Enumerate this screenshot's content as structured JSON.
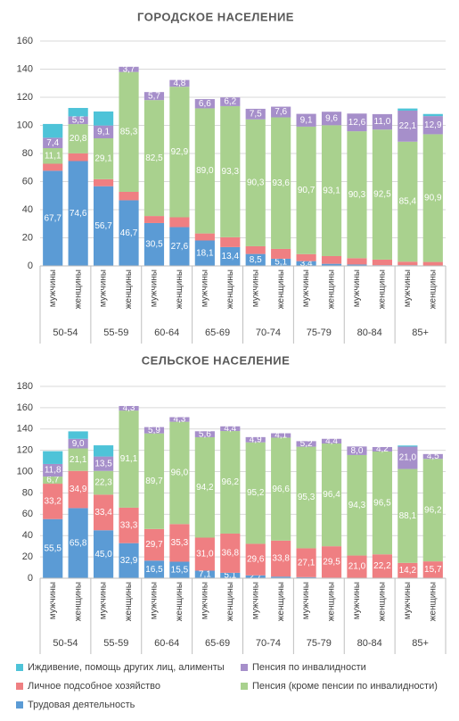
{
  "chart_data": [
    {
      "type": "stacked-bar",
      "title": "ГОРОДСКОЕ НАСЕЛЕНИЕ",
      "categories": [
        "мужчины",
        "женщины",
        "мужчины",
        "женщины",
        "мужчины",
        "женщины",
        "мужчины",
        "женщины",
        "мужчины",
        "женщины",
        "мужчины",
        "женщины",
        "мужчины",
        "женщины",
        "мужчины",
        "женщины"
      ],
      "groups": [
        "50-54",
        "55-59",
        "60-64",
        "65-69",
        "70-74",
        "75-79",
        "80-84",
        "85+"
      ],
      "ylim": [
        0,
        160
      ],
      "yticks": [
        0,
        20,
        40,
        60,
        80,
        100,
        120,
        140,
        160
      ],
      "grid": true,
      "series": [
        {
          "name": "Трудовая деятельность",
          "color": "#5b9bd5",
          "values": [
            67.7,
            74.6,
            56.7,
            46.7,
            30.5,
            27.6,
            18.1,
            13.4,
            8.5,
            5.1,
            3.4,
            1.5,
            1.0,
            0.5,
            0.5,
            0.3
          ],
          "value_labels": [
            "67,7",
            "74,6",
            "56,7",
            "46,7",
            "30,5",
            "27,6",
            "18,1",
            "13,4",
            "8,5",
            "5,1",
            "3,4",
            null,
            null,
            null,
            null,
            null
          ]
        },
        {
          "name": "Личное подсобное хозяйство",
          "color": "#ef7f82",
          "values": [
            5.0,
            5.5,
            5.0,
            6.0,
            5.0,
            7.0,
            5.0,
            7.0,
            5.5,
            7.0,
            5.0,
            5.5,
            4.5,
            4.0,
            2.5,
            2.5
          ],
          "value_labels": [
            null,
            null,
            null,
            null,
            null,
            null,
            null,
            null,
            null,
            null,
            null,
            null,
            null,
            null,
            null,
            null
          ]
        },
        {
          "name": "Пенсия (кроме пенсии по инвалидности)",
          "color": "#a9d18e",
          "values": [
            11.1,
            20.8,
            29.1,
            85.3,
            82.5,
            92.9,
            89.0,
            93.3,
            90.3,
            93.6,
            90.7,
            93.1,
            90.3,
            92.5,
            85.4,
            90.9
          ],
          "value_labels": [
            "11,1",
            "20,8",
            "29,1",
            "85,3",
            "82,5",
            "92,9",
            "89,0",
            "93,3",
            "90,3",
            "93,6",
            "90,7",
            "93,1",
            "90,3",
            "92,5",
            "85,4",
            "90,9"
          ]
        },
        {
          "name": "Пенсия по инвалидности",
          "color": "#a68fca",
          "values": [
            7.4,
            5.5,
            9.1,
            3.7,
            5.7,
            4.8,
            6.6,
            6.2,
            7.5,
            7.6,
            9.1,
            9.6,
            12.6,
            11.0,
            22.1,
            12.9
          ],
          "value_labels": [
            "7,4",
            "5,5",
            "9,1",
            "3,7",
            "5,7",
            "4,8",
            "6,6",
            "6,2",
            "7,5",
            "7,6",
            "9,1",
            "9,6",
            "12,6",
            "11,0",
            "22,1",
            "12,9"
          ]
        },
        {
          "name": "Иждивение, помощь других лиц, алименты",
          "color": "#4ec3d8",
          "values": [
            9.8,
            6.0,
            10.0,
            0,
            0,
            0,
            0,
            0,
            0,
            0,
            0,
            0,
            0,
            0,
            1.5,
            1.5
          ]
        }
      ]
    },
    {
      "type": "stacked-bar",
      "title": "СЕЛЬСКОЕ НАСЕЛЕНИЕ",
      "categories": [
        "мужчины",
        "женщины",
        "мужчины",
        "женщины",
        "мужчины",
        "женщины",
        "мужчины",
        "женщины",
        "мужчины",
        "женщины",
        "мужчины",
        "женщины",
        "мужчины",
        "женщины",
        "мужчины",
        "женщины"
      ],
      "groups": [
        "50-54",
        "55-59",
        "60-64",
        "65-69",
        "70-74",
        "75-79",
        "80-84",
        "85+"
      ],
      "ylim": [
        0,
        180
      ],
      "yticks": [
        0,
        20,
        40,
        60,
        80,
        100,
        120,
        140,
        160,
        180
      ],
      "grid": true,
      "series": [
        {
          "color": "#5b9bd5",
          "values": [
            55.5,
            65.8,
            45.0,
            32.9,
            16.5,
            15.5,
            7.1,
            5.1,
            2.7,
            1.5,
            1.0,
            0.5,
            0.3,
            0.2,
            0.2,
            0.1
          ],
          "value_labels": [
            "55,5",
            "65,8",
            "45,0",
            "32,9",
            "16,5",
            "15,5",
            "7,1",
            "5,1",
            "2,7",
            null,
            null,
            null,
            null,
            null,
            null,
            null
          ]
        },
        {
          "color": "#ef7f82",
          "values": [
            33.2,
            34.9,
            33.4,
            33.3,
            29.7,
            35.3,
            31.0,
            36.8,
            29.6,
            33.8,
            27.1,
            29.5,
            21.0,
            22.2,
            14.2,
            15.7
          ],
          "value_labels": [
            "33,2",
            "34,9",
            "33,4",
            "33,3",
            "29,7",
            "35,3",
            "31,0",
            "36,8",
            "29,6",
            "33,8",
            "27,1",
            "29,5",
            "21,0",
            "22,2",
            "14,2",
            "15,7"
          ]
        },
        {
          "color": "#a9d18e",
          "values": [
            6.7,
            21.1,
            22.3,
            91.1,
            89.7,
            96.0,
            94.2,
            96.2,
            95.2,
            96.6,
            95.3,
            96.4,
            94.3,
            96.5,
            88.1,
            96.2
          ],
          "value_labels": [
            "6,7",
            "21,1",
            "22,3",
            "91,1",
            "89,7",
            "96,0",
            "94,2",
            "96,2",
            "95,2",
            "96,6",
            "95,3",
            "96,4",
            "94,3",
            "96,5",
            "88,1",
            "96,2"
          ]
        },
        {
          "color": "#a68fca",
          "values": [
            11.8,
            9.0,
            13.5,
            4.3,
            5.9,
            4.3,
            5.6,
            4.4,
            4.9,
            4.1,
            5.2,
            4.4,
            8.0,
            4.2,
            21.0,
            4.5
          ],
          "value_labels": [
            "11,8",
            "9,0",
            "13,5",
            "4,3",
            "5,9",
            "4,3",
            "5,6",
            "4,4",
            "4,9",
            "4,1",
            "5,2",
            "4,4",
            "8,0",
            "4,2",
            "21,0",
            "4,5"
          ]
        },
        {
          "color": "#4ec3d8",
          "values": [
            12.0,
            7.0,
            10.5,
            0,
            0,
            0,
            0,
            0,
            0,
            0,
            0,
            0,
            0,
            0,
            1.0,
            0
          ]
        }
      ]
    }
  ]
}
